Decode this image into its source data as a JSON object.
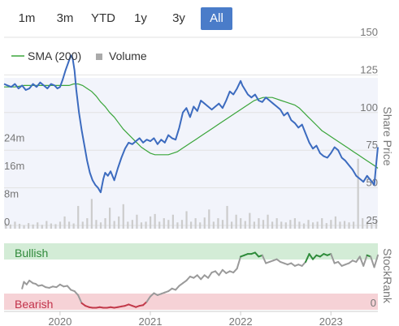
{
  "range_tabs": [
    {
      "label": "1m",
      "active": false
    },
    {
      "label": "3m",
      "active": false
    },
    {
      "label": "YTD",
      "active": false
    },
    {
      "label": "1y",
      "active": false
    },
    {
      "label": "3y",
      "active": false
    },
    {
      "label": "All",
      "active": true
    }
  ],
  "colors": {
    "price_line": "#3c6bbf",
    "sma_line": "#3aa53a",
    "volume_bar": "#cccccc",
    "bullish_band": "#d3ecd6",
    "bearish_band": "#f6d2d6",
    "bullish_text": "#2f8a3a",
    "bearish_text": "#c2324a",
    "rank_neutral": "#9a9a9a",
    "rank_bullish": "#2e8b3a",
    "rank_bearish": "#c23a4a",
    "active_tab": "#4a7cc9"
  },
  "chart_data": [
    {
      "type": "line",
      "name": "price-chart",
      "legend": {
        "placement": "top-left",
        "entries": [
          "SMA (200)",
          "Volume"
        ]
      },
      "y_axis_title": "Share Price",
      "y_ticks": [
        150,
        125,
        100,
        75,
        50,
        25
      ],
      "ylim": [
        25,
        150
      ],
      "volume_ticks": [
        "24m",
        "16m",
        "8m",
        "0"
      ],
      "volume_ylim": [
        0,
        32
      ],
      "xlim": [
        2019.38,
        2023.52
      ],
      "x_ticks": [
        "2020",
        "2021",
        "2022",
        "2023"
      ],
      "grid": true,
      "price_series": {
        "x": [
          2019.38,
          2019.42,
          2019.46,
          2019.5,
          2019.54,
          2019.58,
          2019.62,
          2019.66,
          2019.7,
          2019.74,
          2019.78,
          2019.82,
          2019.86,
          2019.9,
          2019.94,
          2019.97,
          2020.0,
          2020.03,
          2020.06,
          2020.09,
          2020.12,
          2020.14,
          2020.16,
          2020.18,
          2020.21,
          2020.24,
          2020.27,
          2020.3,
          2020.33,
          2020.36,
          2020.39,
          2020.42,
          2020.45,
          2020.48,
          2020.5,
          2020.53,
          2020.56,
          2020.6,
          2020.64,
          2020.68,
          2020.72,
          2020.76,
          2020.8,
          2020.84,
          2020.88,
          2020.92,
          2020.96,
          2021.0,
          2021.04,
          2021.08,
          2021.12,
          2021.16,
          2021.2,
          2021.24,
          2021.28,
          2021.32,
          2021.36,
          2021.4,
          2021.44,
          2021.48,
          2021.52,
          2021.56,
          2021.6,
          2021.64,
          2021.68,
          2021.72,
          2021.76,
          2021.8,
          2021.84,
          2021.88,
          2021.92,
          2021.96,
          2022.0,
          2022.02,
          2022.05,
          2022.08,
          2022.12,
          2022.16,
          2022.2,
          2022.24,
          2022.28,
          2022.32,
          2022.36,
          2022.4,
          2022.44,
          2022.48,
          2022.52,
          2022.56,
          2022.6,
          2022.64,
          2022.68,
          2022.72,
          2022.76,
          2022.8,
          2022.84,
          2022.88,
          2022.92,
          2022.96,
          2023.0,
          2023.04,
          2023.08,
          2023.12,
          2023.16,
          2023.2,
          2023.24,
          2023.28,
          2023.32,
          2023.36,
          2023.4,
          2023.44,
          2023.48,
          2023.5,
          2023.52
        ],
        "y": [
          119,
          118,
          117,
          119,
          116,
          118,
          115,
          116,
          119,
          117,
          120,
          118,
          116,
          119,
          118,
          116,
          117,
          122,
          128,
          133,
          138,
          136,
          128,
          115,
          100,
          88,
          78,
          68,
          60,
          55,
          52,
          50,
          47,
          56,
          60,
          58,
          61,
          55,
          63,
          70,
          76,
          80,
          79,
          81,
          83,
          80,
          82,
          81,
          83,
          79,
          82,
          80,
          85,
          83,
          82,
          90,
          100,
          103,
          97,
          104,
          101,
          108,
          106,
          104,
          102,
          104,
          106,
          103,
          108,
          114,
          112,
          116,
          121,
          118,
          115,
          112,
          110,
          112,
          108,
          107,
          110,
          108,
          106,
          104,
          102,
          98,
          100,
          95,
          93,
          90,
          92,
          86,
          80,
          76,
          78,
          73,
          71,
          70,
          73,
          77,
          75,
          70,
          68,
          65,
          62,
          58,
          56,
          54,
          58,
          55,
          52,
          65,
          77
        ]
      },
      "sma_series": {
        "name": "SMA (200)",
        "x": [
          2019.38,
          2019.5,
          2019.6,
          2019.7,
          2019.8,
          2019.9,
          2020.0,
          2020.1,
          2020.15,
          2020.2,
          2020.25,
          2020.3,
          2020.35,
          2020.4,
          2020.45,
          2020.5,
          2020.55,
          2020.6,
          2020.65,
          2020.7,
          2020.75,
          2020.8,
          2020.85,
          2020.9,
          2020.95,
          2021.0,
          2021.05,
          2021.1,
          2021.15,
          2021.2,
          2021.25,
          2021.3,
          2021.35,
          2021.4,
          2021.45,
          2021.5,
          2021.55,
          2021.6,
          2021.65,
          2021.7,
          2021.75,
          2021.8,
          2021.85,
          2021.9,
          2021.95,
          2022.0,
          2022.05,
          2022.1,
          2022.15,
          2022.2,
          2022.25,
          2022.3,
          2022.35,
          2022.4,
          2022.45,
          2022.5,
          2022.55,
          2022.6,
          2022.65,
          2022.7,
          2022.75,
          2022.8,
          2022.85,
          2022.9,
          2022.95,
          2023.0,
          2023.05,
          2023.1,
          2023.15,
          2023.2,
          2023.25,
          2023.3,
          2023.35,
          2023.4,
          2023.45,
          2023.5,
          2023.52
        ],
        "y": [
          117,
          117,
          118,
          118,
          118,
          118,
          118,
          118,
          119,
          119,
          118,
          116,
          114,
          111,
          107,
          104,
          100,
          97,
          93,
          89,
          86,
          83,
          80,
          77,
          75,
          73,
          72,
          72,
          72,
          72,
          73,
          74,
          76,
          78,
          80,
          82,
          84,
          86,
          88,
          90,
          92,
          94,
          96,
          98,
          100,
          102,
          104,
          106,
          108,
          109,
          110,
          110,
          110,
          109,
          108,
          107,
          106,
          105,
          103,
          100,
          97,
          94,
          91,
          88,
          86,
          84,
          82,
          80,
          78,
          76,
          74,
          72,
          70,
          68,
          66,
          64,
          63
        ]
      },
      "volume_series": {
        "name": "Volume",
        "x": [
          2019.4,
          2019.45,
          2019.5,
          2019.55,
          2019.6,
          2019.65,
          2019.7,
          2019.75,
          2019.8,
          2019.85,
          2019.9,
          2019.95,
          2020.0,
          2020.05,
          2020.1,
          2020.15,
          2020.2,
          2020.25,
          2020.3,
          2020.35,
          2020.4,
          2020.45,
          2020.5,
          2020.55,
          2020.6,
          2020.65,
          2020.7,
          2020.75,
          2020.8,
          2020.85,
          2020.9,
          2020.95,
          2021.0,
          2021.05,
          2021.1,
          2021.15,
          2021.2,
          2021.25,
          2021.3,
          2021.35,
          2021.4,
          2021.45,
          2021.5,
          2021.55,
          2021.6,
          2021.65,
          2021.7,
          2021.75,
          2021.8,
          2021.85,
          2021.9,
          2021.95,
          2022.0,
          2022.05,
          2022.1,
          2022.15,
          2022.2,
          2022.25,
          2022.3,
          2022.35,
          2022.4,
          2022.45,
          2022.5,
          2022.55,
          2022.6,
          2022.65,
          2022.7,
          2022.75,
          2022.8,
          2022.85,
          2022.9,
          2022.95,
          2023.0,
          2023.05,
          2023.1,
          2023.15,
          2023.2,
          2023.25,
          2023.3,
          2023.35,
          2023.4,
          2023.45,
          2023.5
        ],
        "y": [
          1.5,
          1.2,
          2.0,
          1.4,
          1.0,
          1.6,
          1.2,
          1.8,
          1.1,
          2.2,
          1.5,
          1.3,
          2.0,
          3.5,
          2.0,
          1.5,
          6.5,
          2.0,
          3.0,
          8.5,
          2.5,
          1.8,
          3.0,
          6.0,
          2.2,
          3.5,
          7.0,
          2.0,
          2.5,
          4.0,
          1.8,
          2.0,
          3.5,
          4.2,
          2.0,
          3.0,
          2.5,
          4.0,
          1.8,
          2.5,
          5.0,
          2.0,
          3.0,
          1.8,
          3.2,
          5.5,
          2.0,
          3.0,
          2.5,
          6.5,
          2.0,
          4.0,
          3.0,
          2.2,
          4.5,
          2.0,
          3.0,
          2.5,
          4.0,
          2.0,
          3.0,
          2.0,
          1.8,
          2.5,
          3.0,
          2.0,
          1.5,
          2.5,
          1.8,
          2.0,
          3.0,
          1.6,
          2.5,
          3.5,
          2.0,
          2.2,
          1.8,
          2.0,
          20.0,
          3.0,
          2.0,
          1.8,
          2.5
        ]
      }
    },
    {
      "type": "line",
      "name": "stockrank-chart",
      "y_axis_title": "StockRank",
      "zones": [
        "Bullish",
        "Bearish"
      ],
      "y_ticks": [
        0
      ],
      "ylim": [
        0,
        100
      ],
      "xlim": [
        2019.38,
        2023.52
      ],
      "series": {
        "x": [
          2019.58,
          2019.6,
          2019.63,
          2019.66,
          2019.7,
          2019.73,
          2019.76,
          2019.8,
          2019.84,
          2019.88,
          2019.92,
          2019.96,
          2020.0,
          2020.04,
          2020.08,
          2020.12,
          2020.16,
          2020.2,
          2020.24,
          2020.28,
          2020.32,
          2020.36,
          2020.4,
          2020.44,
          2020.48,
          2020.52,
          2020.56,
          2020.6,
          2020.64,
          2020.68,
          2020.72,
          2020.76,
          2020.8,
          2020.84,
          2020.88,
          2020.92,
          2020.96,
          2021.0,
          2021.04,
          2021.08,
          2021.12,
          2021.16,
          2021.2,
          2021.24,
          2021.28,
          2021.32,
          2021.36,
          2021.4,
          2021.44,
          2021.48,
          2021.52,
          2021.56,
          2021.6,
          2021.64,
          2021.68,
          2021.72,
          2021.76,
          2021.8,
          2021.84,
          2021.88,
          2021.92,
          2021.96,
          2022.0,
          2022.04,
          2022.08,
          2022.12,
          2022.16,
          2022.2,
          2022.24,
          2022.28,
          2022.32,
          2022.36,
          2022.4,
          2022.44,
          2022.48,
          2022.52,
          2022.56,
          2022.6,
          2022.64,
          2022.68,
          2022.72,
          2022.76,
          2022.8,
          2022.84,
          2022.88,
          2022.92,
          2022.96,
          2023.0,
          2023.04,
          2023.08,
          2023.12,
          2023.16,
          2023.2,
          2023.24,
          2023.28,
          2023.32,
          2023.36,
          2023.4,
          2023.44,
          2023.48,
          2023.52
        ],
        "y": [
          32,
          42,
          38,
          44,
          40,
          39,
          36,
          37,
          34,
          33,
          35,
          34,
          38,
          35,
          36,
          30,
          28,
          22,
          10,
          6,
          4,
          3,
          3,
          4,
          3,
          3,
          4,
          3,
          4,
          5,
          6,
          8,
          6,
          4,
          6,
          7,
          12,
          20,
          25,
          22,
          24,
          26,
          28,
          32,
          30,
          36,
          40,
          44,
          50,
          48,
          52,
          46,
          52,
          48,
          56,
          58,
          52,
          60,
          55,
          58,
          56,
          62,
          80,
          82,
          84,
          84,
          86,
          80,
          82,
          70,
          72,
          74,
          76,
          72,
          70,
          68,
          70,
          66,
          68,
          66,
          72,
          84,
          76,
          82,
          80,
          84,
          82,
          84,
          70,
          72,
          66,
          68,
          70,
          74,
          72,
          80,
          66,
          82,
          80,
          64,
          82
        ]
      }
    }
  ]
}
